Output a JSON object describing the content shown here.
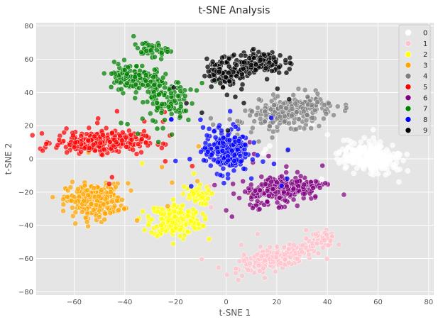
{
  "chart_data": {
    "type": "scatter",
    "title": "t-SNE Analysis",
    "xlabel": "t-SNE 1",
    "ylabel": "t-SNE 2",
    "xlim": [
      -75,
      82
    ],
    "ylim": [
      -82,
      82
    ],
    "xticks": [
      -60,
      -40,
      -20,
      0,
      20,
      40,
      60,
      80
    ],
    "yticks": [
      -80,
      -60,
      -40,
      -20,
      0,
      20,
      40,
      60,
      80
    ],
    "grid": true,
    "legend_position": "top-right",
    "background": "#e5e5e5",
    "series": [
      {
        "name": "0",
        "color": "#ffffff",
        "clusters": [
          {
            "cx": 57,
            "cy": 1,
            "rx": 11,
            "ry": 8,
            "rot": -25,
            "n": 240
          }
        ]
      },
      {
        "name": "1",
        "color": "#ffc0cb",
        "clusters": [
          {
            "cx": 20,
            "cy": -60,
            "rx": 15,
            "ry": 5,
            "rot": 20,
            "n": 230
          },
          {
            "cx": 38,
            "cy": -48,
            "rx": 5,
            "ry": 4,
            "rot": 0,
            "n": 60
          }
        ]
      },
      {
        "name": "2",
        "color": "#ffff00",
        "clusters": [
          {
            "cx": -20,
            "cy": -37,
            "rx": 9,
            "ry": 9,
            "rot": 0,
            "n": 200
          },
          {
            "cx": -12,
            "cy": -22,
            "rx": 5,
            "ry": 5,
            "rot": 0,
            "n": 50
          }
        ]
      },
      {
        "name": "3",
        "color": "#ffa500",
        "clusters": [
          {
            "cx": -52,
            "cy": -25,
            "rx": 10,
            "ry": 9,
            "rot": 0,
            "n": 260
          }
        ]
      },
      {
        "name": "4",
        "color": "#808080",
        "clusters": [
          {
            "cx": 25,
            "cy": 28,
            "rx": 15,
            "ry": 8,
            "rot": 15,
            "n": 250
          }
        ]
      },
      {
        "name": "5",
        "color": "#ff0000",
        "clusters": [
          {
            "cx": -50,
            "cy": 10,
            "rx": 16,
            "ry": 6,
            "rot": 0,
            "n": 270
          }
        ]
      },
      {
        "name": "6",
        "color": "#800080",
        "clusters": [
          {
            "cx": 23,
            "cy": -18,
            "rx": 14,
            "ry": 8,
            "rot": 15,
            "n": 240
          }
        ]
      },
      {
        "name": "7",
        "color": "#008000",
        "clusters": [
          {
            "cx": -38,
            "cy": 50,
            "rx": 8,
            "ry": 7,
            "rot": 0,
            "n": 100
          },
          {
            "cx": -25,
            "cy": 38,
            "rx": 8,
            "ry": 14,
            "rot": 20,
            "n": 130
          },
          {
            "cx": -30,
            "cy": 66,
            "rx": 6,
            "ry": 4,
            "rot": 0,
            "n": 40
          }
        ]
      },
      {
        "name": "8",
        "color": "#0000ff",
        "clusters": [
          {
            "cx": 0,
            "cy": 5,
            "rx": 8,
            "ry": 12,
            "rot": 0,
            "n": 230
          }
        ]
      },
      {
        "name": "9",
        "color": "#000000",
        "clusters": [
          {
            "cx": 0,
            "cy": 52,
            "rx": 7,
            "ry": 8,
            "rot": 0,
            "n": 110
          },
          {
            "cx": 13,
            "cy": 58,
            "rx": 9,
            "ry": 6,
            "rot": 0,
            "n": 130
          }
        ]
      }
    ]
  }
}
